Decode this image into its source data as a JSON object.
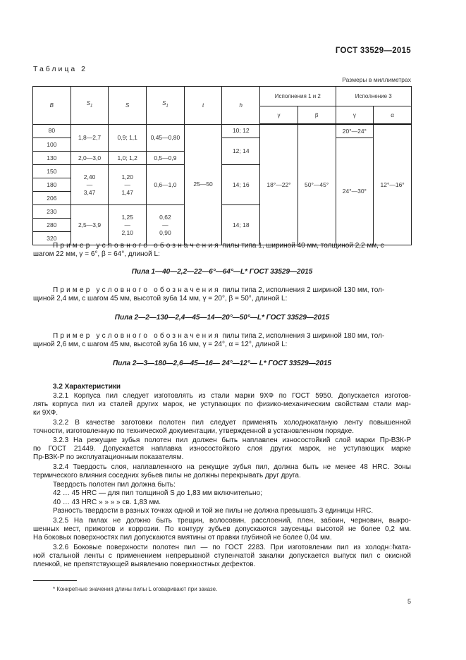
{
  "header": {
    "standard": "ГОСТ 33529—2015"
  },
  "table": {
    "caption": "Таблица 2",
    "units_note": "Размеры в миллиметрах",
    "headers": {
      "B": "B",
      "S1a": "S",
      "S1a_sub": "1",
      "S": "S",
      "S1b": "S",
      "S1b_sub": "1",
      "t": "t",
      "h": "h",
      "group12": "Исполнения 1 и 2",
      "group3": "Исполнение 3",
      "gamma12": "γ",
      "beta": "β",
      "gamma3": "γ",
      "alpha": "α"
    },
    "B_values": [
      "80",
      "100",
      "130",
      "150",
      "180",
      "206",
      "230",
      "280",
      "320"
    ],
    "S1a": [
      "1,8—2,7",
      "2,0—3,0",
      "2,40—3,47",
      "2,5—3,9"
    ],
    "S": [
      "0,9; 1,1",
      "1,0; 1,2",
      "1,20—1,47",
      "1,25—2,10"
    ],
    "S1b": [
      "0,45—0,80",
      "0,5—0,9",
      "0,6—1,0",
      "0,62—0,90"
    ],
    "t": "25—50",
    "h": [
      "10; 12",
      "12; 14",
      "14; 16",
      "14; 18"
    ],
    "gamma12": "18°—22°",
    "beta": "50°—45°",
    "gamma3": [
      "20°—24°",
      "24°—30°"
    ],
    "alpha": "12°—16°"
  },
  "examples": [
    {
      "lead": "Пример условного обозначения",
      "line1": " пилы типа 1, шириной 40 мм, толщиной 2,2 мм, с",
      "line2": "шагом 22 мм,   γ = 6°,  β = 64°, длиной L:",
      "formula": "Пила 1—40—2,2—22—6°—64°—L* ГОСТ 33529—2015"
    },
    {
      "lead": "Пример условного обозначения",
      "line1": " пилы типа 2, исполнения 2 шириной 130 мм, тол-",
      "line2": "щиной 2,4 мм, с шагом 45 мм, высотой зуба 14 мм, γ = 20°, β = 50°, длиной L:",
      "formula": "Пила 2—2—130—2,4—45—14—20°—50°—L* ГОСТ 33529—2015"
    },
    {
      "lead": "Пример условного обозначения",
      "line1": " пилы типа 2, исполнения 3 шириной 180 мм, тол-",
      "line2": "щиной 2,6 мм, с шагом 45 мм, высотой зуба 16 мм, γ = 24°, α  = 12°, длиной L:",
      "formula": "Пила 2—3—180—2,6—45—16— 24°—12°— L* ГОСТ 33529—2015"
    }
  ],
  "section": {
    "heading": "3.2 Характеристики",
    "lines": [
      "3.2.1  Корпуса пил следует изготовлять из стали марки 9ХФ по ГОСТ 5950. Допускается изготов-",
      "лять корпуса пил из сталей других марок, не уступающих по физико-механическим свойствам стали мар-",
      "ки 9ХФ.",
      "3.2.2  В качестве заготовки полотен пил следует применять холоднокатаную ленту повышенной",
      "точности, изготовленную по технической документации, утвержденной в установленном порядке.",
      "3.2.3  На режущие зубья полотен пил должен быть наплавлен износостойкий слой марки Пр-ВЗК-Р",
      "по ГОСТ 21449. Допускается наплавка износостойкого слоя других марок, не уступающих марке",
      "Пр-ВЗК-Р по эксплуатационным показателям.",
      "3.2.4  Твердость слоя, наплавленного на режущие зубья пил, должна быть не менее 48 HRC. Зоны",
      "термического влияния соседних зубьев пилы не должны перекрывать друг друга.",
      "Твердость полотен пил должна быть:",
      "42 … 45 HRC —  для пил толщиной S до 1,83 мм включительно;",
      "40 … 43 HRC         »    »          »           »  св. 1,83 мм.",
      "Разность твердости в разных точках одной и той же пилы не должна превышать 3 единицы HRC.",
      "3.2.5  На пилах не должно быть трещин, волосовин, расслоений, плен, забоин, черновин, выкро-",
      "шенных мест, прижогов и коррозии. По контуру зубьев допускаются заусенцы высотой не более 0,2 мм.",
      "На боковых поверхностях пил допускаются вмятины от правки глубиной не более 0,04 мм.",
      "3.2.6  Боковые поверхности полотен пил —  по ГОСТ 2283. При изготовлении пил из холоднोката-",
      "ной стальной ленты с применением непрерывной ступенчатой закалки допускается выпуск пил с окисной",
      "пленкой, не препятствующей выявлению поверхностных дефектов."
    ]
  },
  "footnote": "* Конкретные значения длины пилы L оговаривают при заказе.",
  "page_number": "5"
}
